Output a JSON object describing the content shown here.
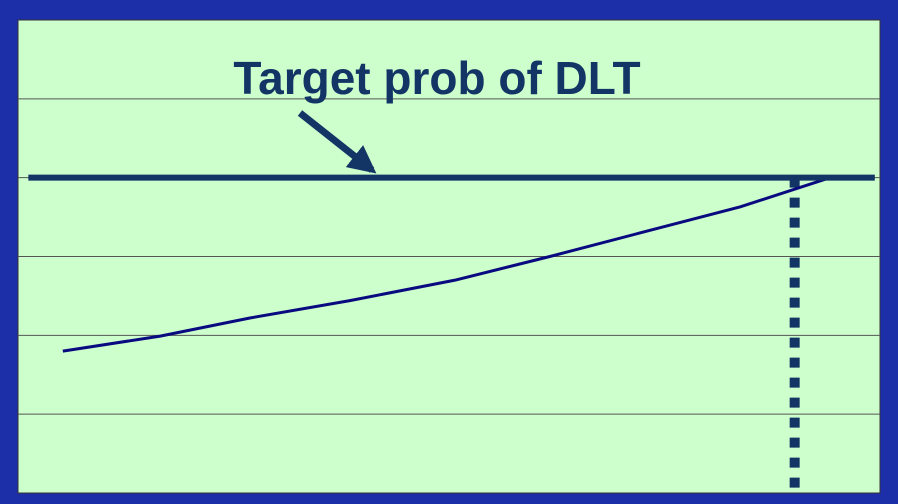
{
  "chart_data": {
    "type": "line",
    "annotation": "Target prob of DLT",
    "x": [
      5.2,
      16.5,
      26.9,
      38.5,
      50.7,
      61.7,
      72.2,
      83.8,
      94.2
    ],
    "series": [
      {
        "color": "#0a0a80",
        "values": [
          1.8,
          1.99,
          2.22,
          2.44,
          2.7,
          3.0,
          3.3,
          3.63,
          4.0
        ]
      }
    ],
    "target_line": {
      "value": 4.0,
      "x": [
        1.2,
        99.4
      ],
      "color": "#123566"
    },
    "dose_line": {
      "x": 90.1,
      "color": "#123566"
    },
    "xlim": [
      0,
      100
    ],
    "ylim": [
      0,
      6
    ],
    "yticks": [
      1,
      2,
      3,
      4,
      5
    ],
    "grid": true,
    "background": "#ccffcc"
  }
}
